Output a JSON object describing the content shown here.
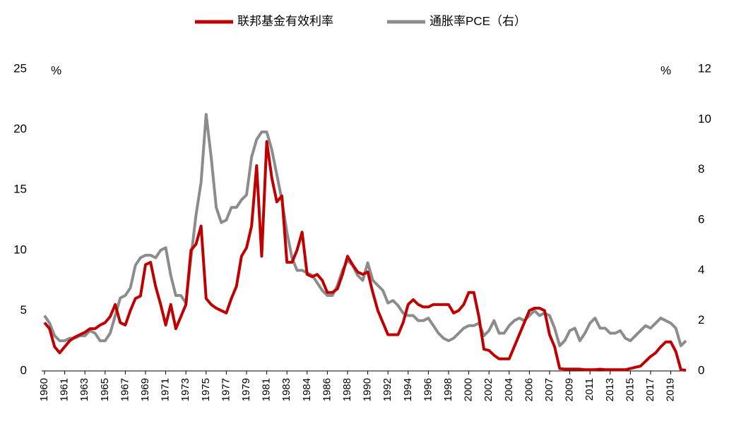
{
  "chart_data": {
    "type": "line",
    "categories": [
      "1960",
      null,
      null,
      null,
      "1961",
      null,
      null,
      null,
      "1963",
      null,
      null,
      null,
      "1965",
      null,
      null,
      null,
      "1967",
      null,
      null,
      null,
      "1969",
      null,
      null,
      null,
      "1971",
      null,
      null,
      null,
      "1973",
      null,
      null,
      null,
      "1975",
      null,
      null,
      null,
      "1977",
      null,
      null,
      null,
      "1979",
      null,
      null,
      null,
      "1981",
      null,
      null,
      null,
      "1983",
      null,
      null,
      null,
      "1984",
      null,
      null,
      null,
      "1986",
      null,
      null,
      null,
      "1988",
      null,
      null,
      null,
      "1990",
      null,
      null,
      null,
      "1992",
      null,
      null,
      null,
      "1994",
      null,
      null,
      null,
      "1996",
      null,
      null,
      null,
      "1998",
      null,
      null,
      null,
      "2000",
      null,
      null,
      null,
      "2002",
      null,
      null,
      null,
      "2004",
      null,
      null,
      null,
      "2006",
      null,
      null,
      null,
      "2007",
      null,
      null,
      null,
      "2009",
      null,
      null,
      null,
      "2011",
      null,
      null,
      null,
      "2013",
      null,
      null,
      null,
      "2015",
      null,
      null,
      null,
      "2017",
      null,
      null,
      null,
      "2019",
      null,
      null,
      null
    ],
    "series": [
      {
        "name": "联邦基金有效利率",
        "color": "#c00000",
        "values": [
          4.0,
          3.5,
          2.0,
          1.5,
          2.0,
          2.5,
          2.8,
          3.0,
          3.2,
          3.5,
          3.5,
          3.8,
          4.0,
          4.5,
          5.5,
          4.0,
          3.8,
          5.0,
          6.0,
          6.2,
          8.8,
          9.0,
          7.0,
          5.5,
          3.8,
          5.5,
          3.5,
          4.5,
          5.5,
          10.0,
          10.5,
          12.0,
          6.0,
          5.5,
          5.2,
          5.0,
          4.8,
          6.0,
          7.0,
          9.5,
          10.2,
          12.0,
          17.0,
          9.5,
          19.0,
          16.0,
          14.0,
          14.5,
          9.0,
          9.0,
          10.0,
          11.5,
          8.0,
          7.8,
          8.0,
          7.5,
          6.5,
          6.5,
          6.8,
          8.0,
          9.5,
          8.8,
          8.2,
          8.0,
          8.2,
          6.5,
          5.0,
          4.0,
          3.0,
          3.0,
          3.0,
          4.0,
          5.5,
          5.9,
          5.5,
          5.3,
          5.3,
          5.5,
          5.5,
          5.5,
          5.5,
          4.8,
          5.0,
          5.5,
          6.5,
          6.5,
          4.5,
          1.8,
          1.7,
          1.3,
          1.0,
          1.0,
          1.0,
          2.0,
          3.0,
          4.0,
          5.0,
          5.2,
          5.2,
          5.0,
          3.0,
          2.0,
          0.2,
          0.15,
          0.15,
          0.15,
          0.15,
          0.1,
          0.1,
          0.1,
          0.15,
          0.1,
          0.1,
          0.1,
          0.1,
          0.1,
          0.2,
          0.3,
          0.4,
          0.8,
          1.2,
          1.5,
          2.0,
          2.4,
          2.4,
          1.6,
          0.1,
          0.05
        ]
      },
      {
        "name": "通胀率PCE（右）",
        "color": "#8c8c8c",
        "axis": "y2",
        "values": [
          2.2,
          1.9,
          1.4,
          1.2,
          1.2,
          1.3,
          1.3,
          1.4,
          1.4,
          1.6,
          1.5,
          1.2,
          1.2,
          1.5,
          2.2,
          2.9,
          3.0,
          3.3,
          4.2,
          4.5,
          4.6,
          4.6,
          4.5,
          4.8,
          4.9,
          3.8,
          3.0,
          3.0,
          2.7,
          4.5,
          6.2,
          7.5,
          10.2,
          8.5,
          6.5,
          5.9,
          6.0,
          6.5,
          6.5,
          6.8,
          7.0,
          8.5,
          9.2,
          9.5,
          9.5,
          8.8,
          7.8,
          6.8,
          5.5,
          4.5,
          4.0,
          4.0,
          3.9,
          3.8,
          3.5,
          3.2,
          3.0,
          3.0,
          3.4,
          4.0,
          4.4,
          4.2,
          3.8,
          3.6,
          4.3,
          3.6,
          3.4,
          3.2,
          2.7,
          2.8,
          2.6,
          2.3,
          2.2,
          2.2,
          2.0,
          2.0,
          2.1,
          1.8,
          1.5,
          1.3,
          1.2,
          1.3,
          1.5,
          1.7,
          1.8,
          1.8,
          1.9,
          1.4,
          1.6,
          2.0,
          1.5,
          1.5,
          1.8,
          2.0,
          2.1,
          2.0,
          2.2,
          2.4,
          2.2,
          2.3,
          2.2,
          1.7,
          1.0,
          1.2,
          1.6,
          1.7,
          1.2,
          1.5,
          1.9,
          2.1,
          1.7,
          1.7,
          1.5,
          1.5,
          1.6,
          1.3,
          1.2,
          1.4,
          1.6,
          1.8,
          1.7,
          1.9,
          2.1,
          2.0,
          1.9,
          1.7,
          1.0,
          1.2
        ]
      }
    ],
    "ylabel": "%",
    "y2label": "%",
    "ylim": [
      0,
      25
    ],
    "yticks": [
      0,
      5,
      10,
      15,
      20,
      25
    ],
    "y2lim": [
      0,
      12
    ],
    "y2ticks": [
      0,
      2,
      4,
      6,
      8,
      10,
      12
    ],
    "grid": false,
    "legend": "top"
  }
}
